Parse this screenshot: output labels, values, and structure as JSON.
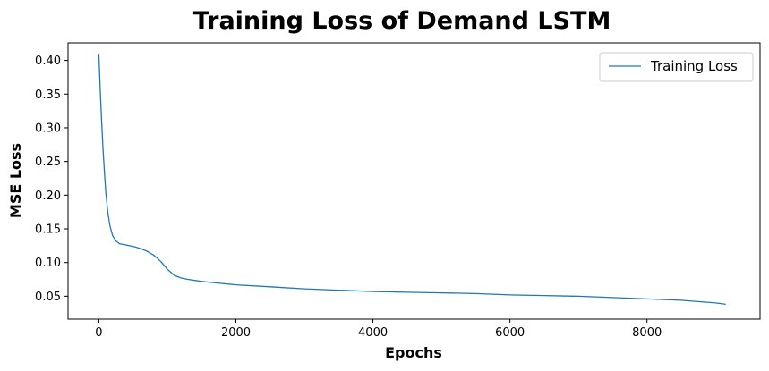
{
  "chart_data": {
    "type": "line",
    "title": "Training Loss of Demand LSTM",
    "xlabel": "Epochs",
    "ylabel": "MSE Loss",
    "xlim": [
      -450,
      9650
    ],
    "ylim": [
      0.016,
      0.426
    ],
    "xticks": [
      0,
      2000,
      4000,
      6000,
      8000
    ],
    "xtick_labels": [
      "0",
      "2000",
      "4000",
      "6000",
      "8000"
    ],
    "yticks": [
      0.05,
      0.1,
      0.15,
      0.2,
      0.25,
      0.3,
      0.35,
      0.4
    ],
    "ytick_labels": [
      "0.05",
      "0.10",
      "0.15",
      "0.20",
      "0.25",
      "0.30",
      "0.35",
      "0.40"
    ],
    "grid": false,
    "legend_position": "top-right",
    "series": [
      {
        "name": "Training Loss",
        "color": "#1f77b4",
        "x": [
          0,
          20,
          40,
          60,
          80,
          100,
          130,
          160,
          200,
          250,
          300,
          400,
          500,
          600,
          700,
          800,
          900,
          1000,
          1100,
          1200,
          1300,
          1500,
          1800,
          2000,
          2500,
          3000,
          3500,
          4000,
          4500,
          5000,
          5500,
          6000,
          6500,
          7000,
          7500,
          8000,
          8500,
          9000,
          9150
        ],
        "y": [
          0.41,
          0.355,
          0.31,
          0.27,
          0.235,
          0.205,
          0.175,
          0.155,
          0.14,
          0.132,
          0.128,
          0.126,
          0.124,
          0.121,
          0.117,
          0.111,
          0.102,
          0.09,
          0.081,
          0.077,
          0.075,
          0.072,
          0.069,
          0.067,
          0.064,
          0.061,
          0.059,
          0.057,
          0.056,
          0.055,
          0.054,
          0.052,
          0.051,
          0.05,
          0.048,
          0.046,
          0.044,
          0.04,
          0.038
        ]
      }
    ]
  }
}
